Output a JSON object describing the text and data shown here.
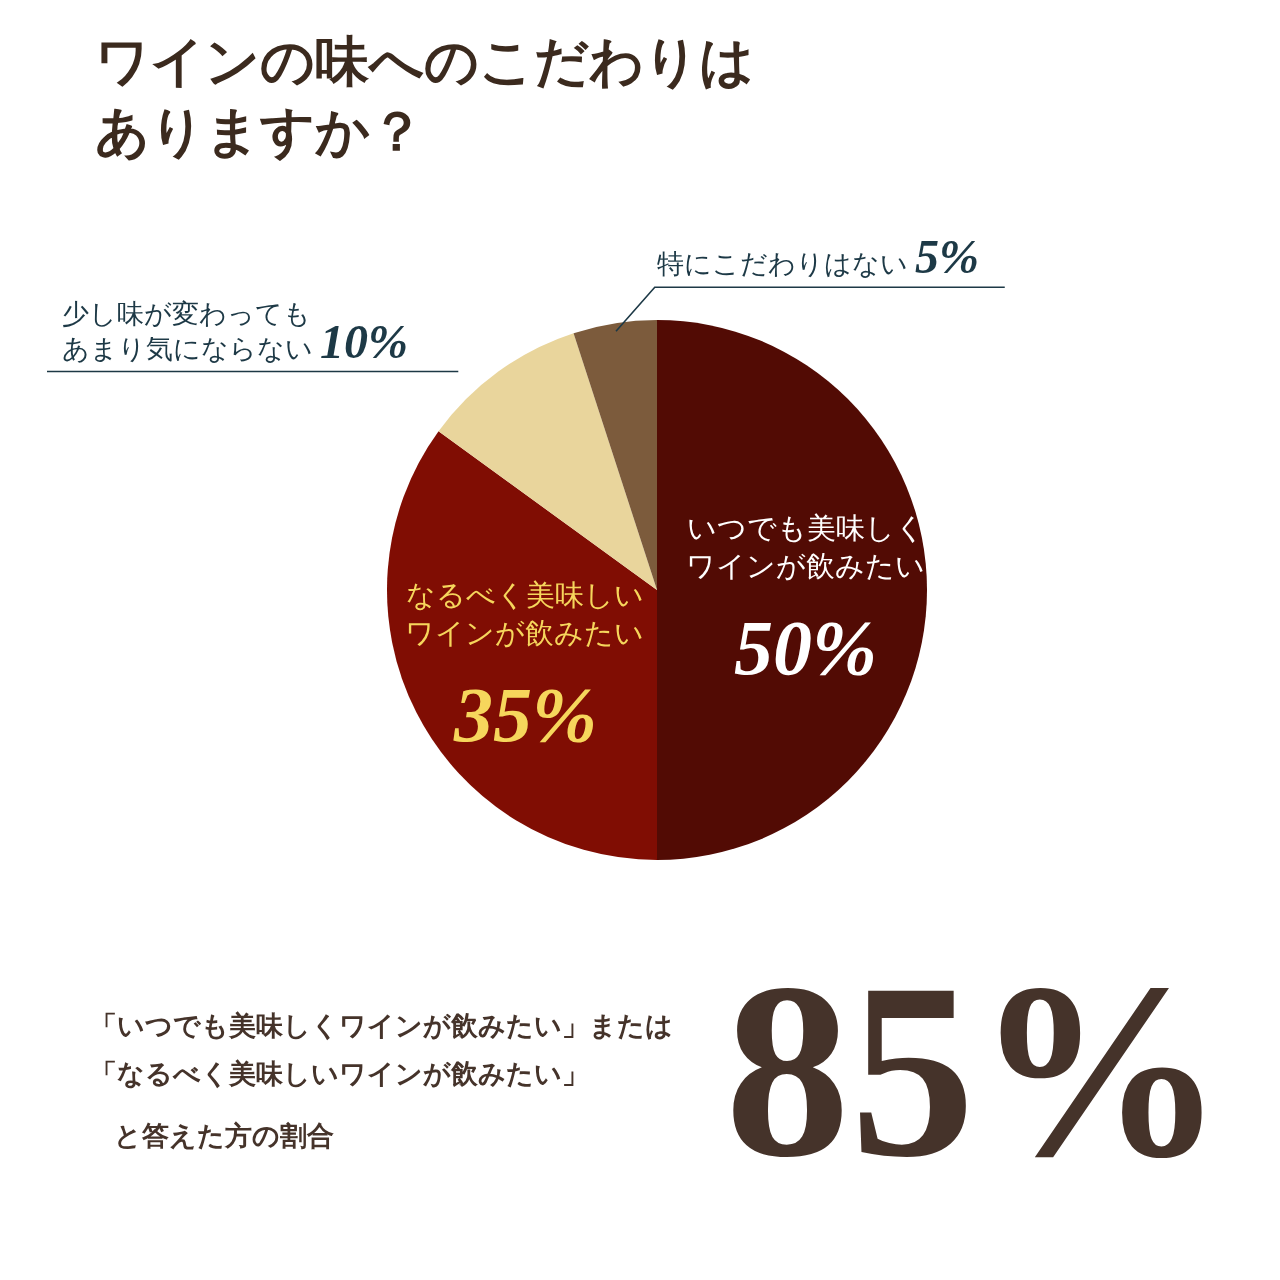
{
  "chart_data": {
    "type": "pie",
    "title": "ワインの味へのこだわりはありますか？",
    "categories": [
      "いつでも美味しくワインが飲みたい",
      "なるべく美味しいワインが飲みたい",
      "少し味が変わってもあまり気にならない",
      "特にこだわりはない"
    ],
    "values": [
      50,
      35,
      10,
      5
    ],
    "value_labels": [
      "50%",
      "35%",
      "10%",
      "5%"
    ],
    "colors": [
      "#520b04",
      "#800d03",
      "#e9d59c",
      "#7c5b3c"
    ],
    "annotations": [
      "「いつでも美味しくワインが飲みたい」または",
      "「なるべく美味しいワインが飲みたい」",
      "と答えた方の割合",
      "85%"
    ]
  }
}
